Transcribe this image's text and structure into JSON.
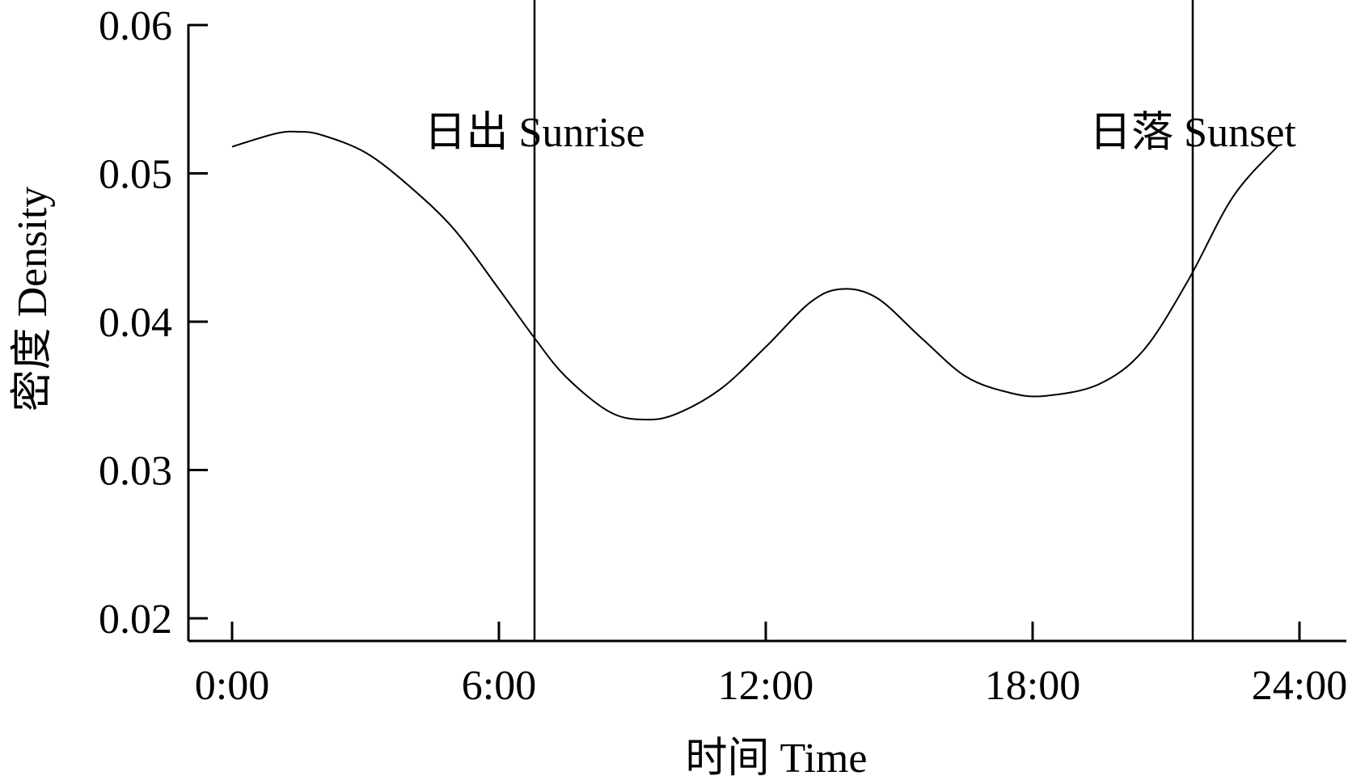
{
  "chart_data": {
    "type": "line",
    "xlabel": "时间 Time",
    "ylabel": "密度 Density",
    "xlim": [
      -1,
      25
    ],
    "ylim": [
      0.02,
      0.062
    ],
    "x_ticks": [
      0,
      6,
      12,
      18,
      24
    ],
    "x_tick_labels": [
      "0:00",
      "6:00",
      "12:00",
      "18:00",
      "24:00"
    ],
    "y_ticks": [
      0.02,
      0.03,
      0.04,
      0.05,
      0.06
    ],
    "y_tick_labels": [
      "0.02",
      "0.03",
      "0.04",
      "0.05",
      "0.06"
    ],
    "grid": false,
    "series": [
      {
        "x": [
          0,
          1,
          1.5,
          2,
          3,
          4,
          5,
          6,
          6.8,
          7.5,
          8.5,
          9.3,
          10,
          11,
          12,
          13,
          13.7,
          14.5,
          15.5,
          16.5,
          17.5,
          18.3,
          19.5,
          20.5,
          21.5,
          22.5,
          23.5
        ],
        "y": [
          0.0518,
          0.0527,
          0.0528,
          0.0526,
          0.0514,
          0.0491,
          0.0462,
          0.0422,
          0.0389,
          0.0363,
          0.0339,
          0.0334,
          0.0338,
          0.0355,
          0.0383,
          0.0413,
          0.0422,
          0.0416,
          0.0389,
          0.0363,
          0.0352,
          0.035,
          0.0358,
          0.0381,
          0.0428,
          0.0484,
          0.0518
        ]
      }
    ],
    "annotations": [
      {
        "label": "日出  Sunrise",
        "x": 6.8
      },
      {
        "label": "日落  Sunset",
        "x": 21.6
      }
    ]
  }
}
